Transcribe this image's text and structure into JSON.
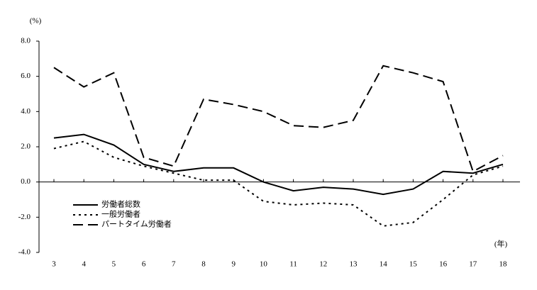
{
  "chart_data": {
    "type": "line",
    "y_unit": "(%)",
    "x_unit": "(年)",
    "categories": [
      "3",
      "4",
      "5",
      "6",
      "7",
      "8",
      "9",
      "10",
      "11",
      "12",
      "13",
      "14",
      "15",
      "16",
      "17",
      "18"
    ],
    "series": [
      {
        "name": "労働者総数",
        "color": "#000000",
        "style": "solid",
        "values": [
          2.5,
          2.7,
          2.1,
          1.0,
          0.6,
          0.8,
          0.8,
          0.0,
          -0.5,
          -0.3,
          -0.4,
          -0.7,
          -0.4,
          0.6,
          0.5,
          1.0
        ]
      },
      {
        "name": "一般労働者",
        "color": "#000000",
        "style": "dotted",
        "values": [
          1.9,
          2.3,
          1.4,
          0.9,
          0.5,
          0.1,
          0.1,
          -1.1,
          -1.3,
          -1.2,
          -1.3,
          -2.5,
          -2.3,
          -1.0,
          0.4,
          0.9
        ]
      },
      {
        "name": "パートタイム労働者",
        "color": "#000000",
        "style": "dashed",
        "values": [
          6.5,
          5.4,
          6.2,
          1.4,
          0.9,
          4.7,
          4.4,
          4.0,
          3.2,
          3.1,
          3.5,
          6.6,
          6.2,
          5.7,
          0.6,
          1.5
        ]
      }
    ],
    "ylim": [
      -4,
      8
    ],
    "yticks": [
      {
        "value": -4,
        "label": "-4.0"
      },
      {
        "value": -2,
        "label": "-2.0"
      },
      {
        "value": 0,
        "label": "0.0"
      },
      {
        "value": 2,
        "label": "2.0"
      },
      {
        "value": 4,
        "label": "4.0"
      },
      {
        "value": 6,
        "label": "6.0"
      },
      {
        "value": 8,
        "label": "8.0"
      }
    ],
    "legend": "lower-left"
  }
}
